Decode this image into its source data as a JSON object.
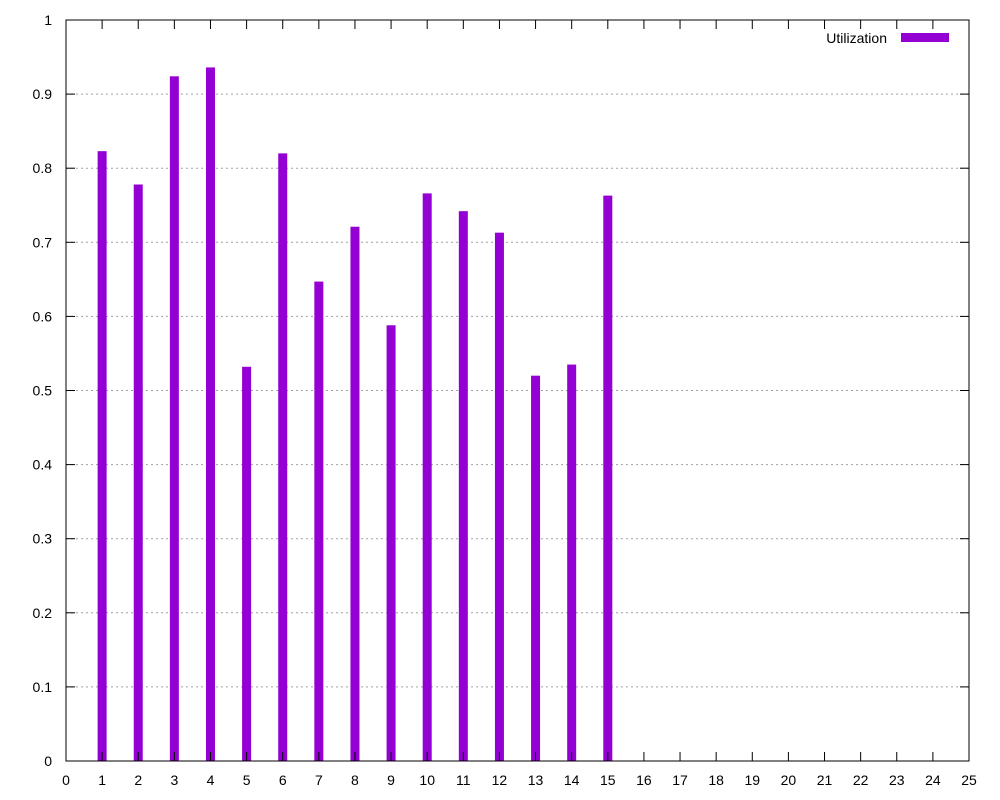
{
  "chart_data": {
    "type": "bar",
    "title": "",
    "xlabel": "",
    "ylabel": "",
    "xlim": [
      0,
      25
    ],
    "ylim": [
      0,
      1
    ],
    "x_ticks": [
      0,
      1,
      2,
      3,
      4,
      5,
      6,
      7,
      8,
      9,
      10,
      11,
      12,
      13,
      14,
      15,
      16,
      17,
      18,
      19,
      20,
      21,
      22,
      23,
      24,
      25
    ],
    "x_tick_labels": [
      "0",
      "1",
      "2",
      "3",
      "4",
      "5",
      "6",
      "7",
      "8",
      "9",
      "10",
      "11",
      "12",
      "13",
      "14",
      "15",
      "16",
      "17",
      "18",
      "19",
      "20",
      "21",
      "22",
      "23",
      "24",
      "25"
    ],
    "y_ticks": [
      0,
      0.1,
      0.2,
      0.3,
      0.4,
      0.5,
      0.6,
      0.7,
      0.8,
      0.9,
      1
    ],
    "y_tick_labels": [
      "0",
      "0.1",
      "0.2",
      "0.3",
      "0.4",
      "0.5",
      "0.6",
      "0.7",
      "0.8",
      "0.9",
      "1"
    ],
    "grid": "horizontal dotted lines at y ticks",
    "legend": {
      "placement": "top-right",
      "entries": [
        "Utilization"
      ]
    },
    "series": [
      {
        "name": "Utilization",
        "color": "#9400d3",
        "x": [
          1,
          2,
          3,
          4,
          5,
          6,
          7,
          8,
          9,
          10,
          11,
          12,
          13,
          14,
          15
        ],
        "values": [
          0.823,
          0.778,
          0.924,
          0.936,
          0.532,
          0.82,
          0.647,
          0.721,
          0.588,
          0.766,
          0.742,
          0.713,
          0.52,
          0.535,
          0.763
        ]
      }
    ]
  }
}
